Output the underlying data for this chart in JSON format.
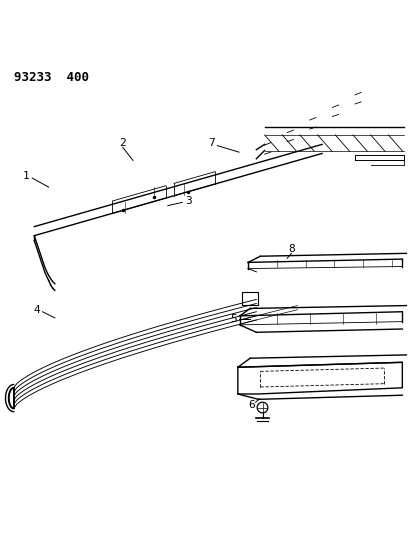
{
  "title": "93233  400",
  "background_color": "#ffffff",
  "fig_width": 4.14,
  "fig_height": 5.33,
  "dpi": 100,
  "line_color": "#000000",
  "label_color": "#000000"
}
